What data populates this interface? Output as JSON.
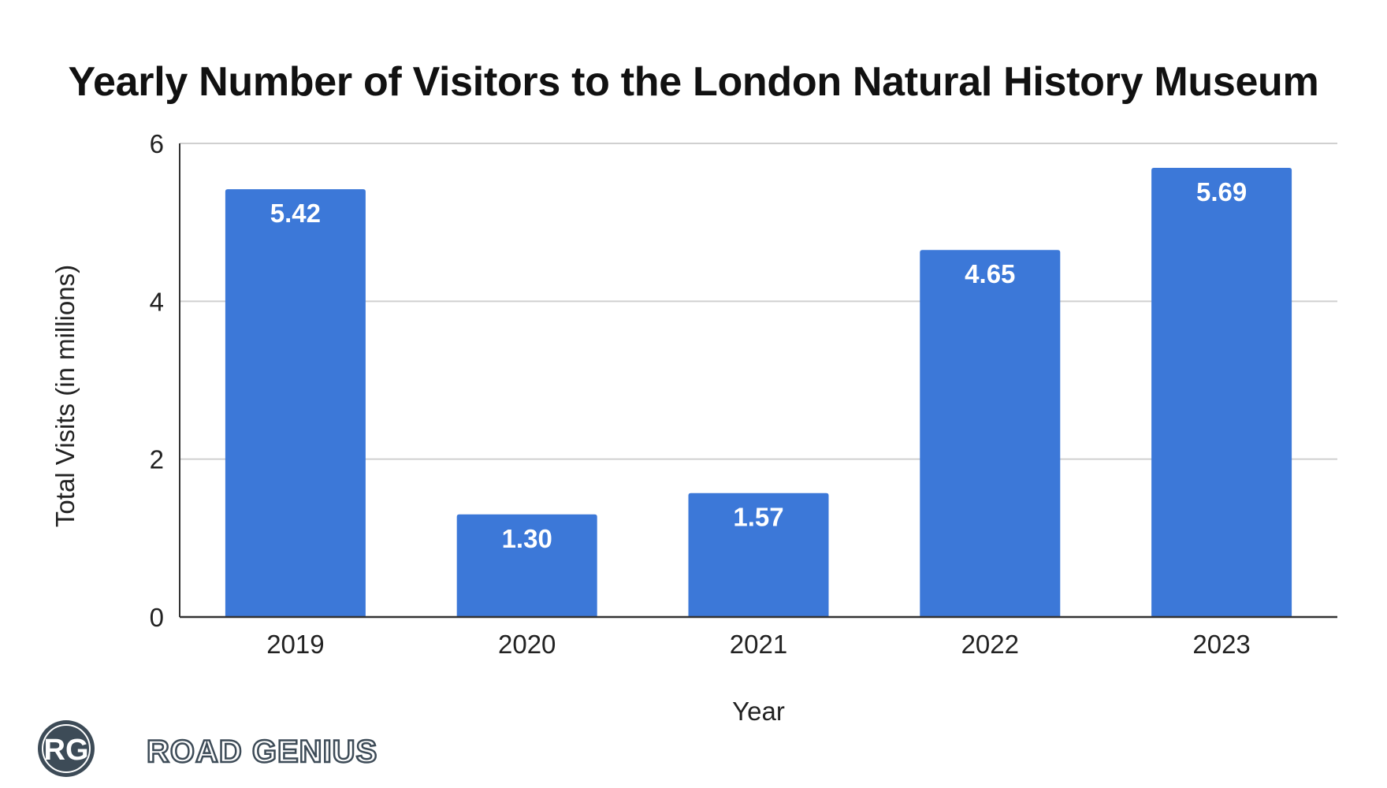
{
  "chart_data": {
    "type": "bar",
    "title": "Yearly Number of Visitors to the London Natural History Museum",
    "xlabel": "Year",
    "ylabel": "Total Visits (in millions)",
    "categories": [
      "2019",
      "2020",
      "2021",
      "2022",
      "2023"
    ],
    "values": [
      5.42,
      1.3,
      1.57,
      4.65,
      5.69
    ],
    "data_labels": [
      "5.42",
      "1.30",
      "1.57",
      "4.65",
      "5.69"
    ],
    "ylim": [
      0,
      6
    ],
    "yticks": [
      "0",
      "2",
      "4",
      "6"
    ],
    "grid": true,
    "legend": "none",
    "bar_color": "#3c78d8"
  },
  "branding": {
    "logo_initials": "RG",
    "logo_name": "ROAD GENIUS",
    "logo_color": "#3d4b57"
  }
}
